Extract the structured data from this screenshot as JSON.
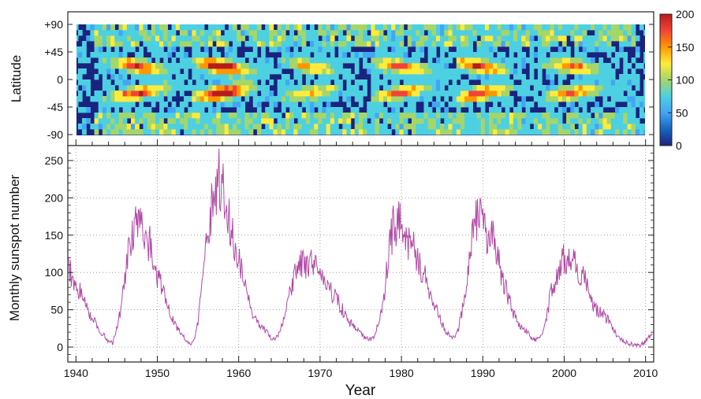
{
  "chart_data": [
    {
      "type": "heatmap",
      "title": "",
      "xlabel": "",
      "ylabel": "Latitude",
      "xlim": [
        1939,
        2011
      ],
      "ylim": [
        -90,
        90
      ],
      "ytick_labels": [
        "+90",
        "+45",
        "0",
        "-45",
        "-90"
      ],
      "ytick_values": [
        90,
        45,
        0,
        -45,
        -90
      ],
      "colorbar": {
        "range": [
          0,
          200
        ],
        "tick_labels": [
          "200",
          "150",
          "100",
          "50",
          "0"
        ],
        "tick_values": [
          200,
          150,
          100,
          50,
          0
        ],
        "colors": [
          "#1a237e",
          "#1565c0",
          "#42a5f5",
          "#4dd0e1",
          "#a5d66a",
          "#ffeb3b",
          "#ff9800",
          "#f44336",
          "#b71c1c"
        ]
      },
      "cycles": [
        {
          "start": 1944.2,
          "max": 1947.6,
          "end": 1954.3,
          "peak": 200
        },
        {
          "start": 1954.3,
          "max": 1957.9,
          "end": 1964.8,
          "peak": 255
        },
        {
          "start": 1964.8,
          "max": 1968.9,
          "end": 1976.2,
          "peak": 135
        },
        {
          "start": 1976.2,
          "max": 1979.9,
          "end": 1986.7,
          "peak": 190
        },
        {
          "start": 1986.7,
          "max": 1989.6,
          "end": 1996.4,
          "peak": 200
        },
        {
          "start": 1996.4,
          "max": 2001.2,
          "end": 2008.9,
          "peak": 170
        }
      ]
    },
    {
      "type": "line",
      "title": "",
      "xlabel": "Year",
      "ylabel": "Monthly sunspot number",
      "xlim": [
        1939,
        2011
      ],
      "ylim": [
        -20,
        270
      ],
      "xtick_labels": [
        "1940",
        "1950",
        "1960",
        "1970",
        "1980",
        "1990",
        "2000",
        "2010"
      ],
      "xtick_values": [
        1940,
        1950,
        1960,
        1970,
        1980,
        1990,
        2000,
        2010
      ],
      "ytick_labels": [
        "250",
        "200",
        "150",
        "100",
        "50",
        "0"
      ],
      "ytick_values": [
        250,
        200,
        150,
        100,
        50,
        0
      ],
      "grid": true,
      "series": [
        {
          "color": "#b04aa6",
          "x": [
            1939.0,
            1939.5,
            1940.0,
            1940.5,
            1941.0,
            1941.5,
            1942.0,
            1942.5,
            1943.0,
            1943.5,
            1944.0,
            1944.5,
            1945.0,
            1945.5,
            1946.0,
            1946.5,
            1947.0,
            1947.5,
            1948.0,
            1948.5,
            1949.0,
            1949.5,
            1950.0,
            1950.5,
            1951.0,
            1951.5,
            1952.0,
            1952.5,
            1953.0,
            1953.5,
            1954.0,
            1954.5,
            1955.0,
            1955.5,
            1956.0,
            1956.5,
            1957.0,
            1957.5,
            1958.0,
            1958.5,
            1959.0,
            1959.5,
            1960.0,
            1960.5,
            1961.0,
            1961.5,
            1962.0,
            1962.5,
            1963.0,
            1963.5,
            1964.0,
            1964.5,
            1965.0,
            1965.5,
            1966.0,
            1966.5,
            1967.0,
            1967.5,
            1968.0,
            1968.5,
            1969.0,
            1969.5,
            1970.0,
            1970.5,
            1971.0,
            1971.5,
            1972.0,
            1972.5,
            1973.0,
            1973.5,
            1974.0,
            1974.5,
            1975.0,
            1975.5,
            1976.0,
            1976.5,
            1977.0,
            1977.5,
            1978.0,
            1978.5,
            1979.0,
            1979.5,
            1980.0,
            1980.5,
            1981.0,
            1981.5,
            1982.0,
            1982.5,
            1983.0,
            1983.5,
            1984.0,
            1984.5,
            1985.0,
            1985.5,
            1986.0,
            1986.5,
            1987.0,
            1987.5,
            1988.0,
            1988.5,
            1989.0,
            1989.5,
            1990.0,
            1990.5,
            1991.0,
            1991.5,
            1992.0,
            1992.5,
            1993.0,
            1993.5,
            1994.0,
            1994.5,
            1995.0,
            1995.5,
            1996.0,
            1996.5,
            1997.0,
            1997.5,
            1998.0,
            1998.5,
            1999.0,
            1999.5,
            2000.0,
            2000.5,
            2001.0,
            2001.5,
            2002.0,
            2002.5,
            2003.0,
            2003.5,
            2004.0,
            2004.5,
            2005.0,
            2005.5,
            2006.0,
            2006.5,
            2007.0,
            2007.5,
            2008.0,
            2008.5,
            2009.0,
            2009.5,
            2010.0,
            2010.5,
            2010.9
          ],
          "y": [
            110,
            95,
            85,
            75,
            65,
            50,
            40,
            30,
            20,
            15,
            8,
            5,
            25,
            50,
            90,
            130,
            150,
            165,
            160,
            150,
            140,
            120,
            95,
            80,
            65,
            50,
            35,
            25,
            18,
            10,
            5,
            8,
            35,
            80,
            140,
            180,
            200,
            230,
            210,
            190,
            165,
            140,
            120,
            100,
            70,
            50,
            40,
            30,
            25,
            20,
            12,
            10,
            20,
            35,
            60,
            85,
            100,
            110,
            110,
            115,
            110,
            105,
            100,
            95,
            80,
            70,
            65,
            55,
            45,
            35,
            30,
            25,
            18,
            12,
            10,
            12,
            25,
            45,
            80,
            130,
            160,
            170,
            165,
            150,
            140,
            130,
            115,
            105,
            90,
            75,
            55,
            45,
            30,
            20,
            15,
            12,
            25,
            50,
            90,
            125,
            165,
            175,
            160,
            145,
            145,
            140,
            110,
            90,
            70,
            55,
            40,
            30,
            25,
            20,
            12,
            10,
            12,
            25,
            50,
            80,
            95,
            110,
            120,
            120,
            115,
            110,
            100,
            90,
            75,
            60,
            50,
            45,
            40,
            35,
            25,
            15,
            10,
            7,
            5,
            3,
            2,
            3,
            8,
            15,
            16
          ]
        }
      ]
    }
  ]
}
